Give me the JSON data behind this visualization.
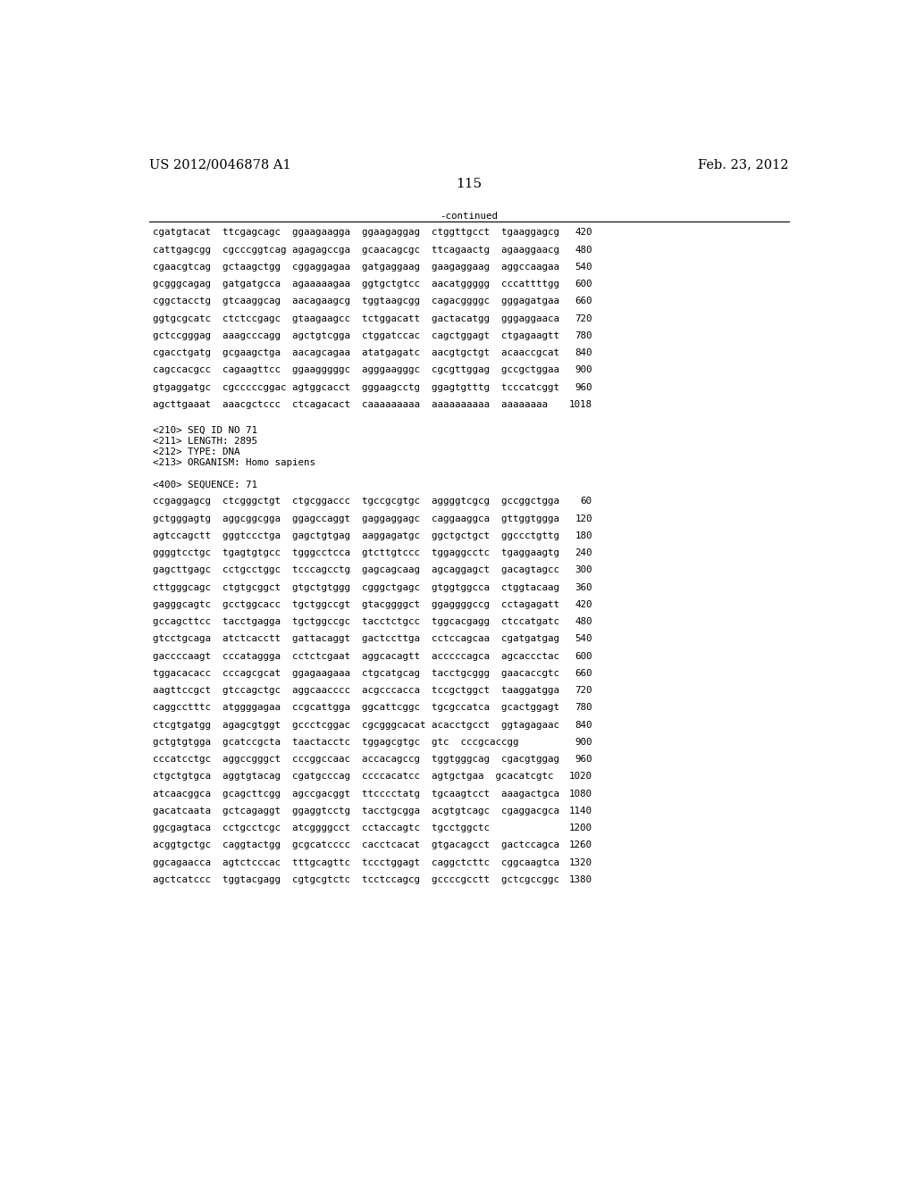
{
  "header_left": "US 2012/0046878 A1",
  "header_right": "Feb. 23, 2012",
  "page_number": "115",
  "continued_label": "-continued",
  "background_color": "#ffffff",
  "text_color": "#000000",
  "font_size_header": 10.5,
  "font_size_body": 7.8,
  "font_size_page": 11,
  "sequence_lines_top": [
    [
      "cgatgtacat  ttcgagcagc  ggaagaagga  ggaagaggag  ctggttgcct  tgaaggagcg",
      "420"
    ],
    [
      "cattgagcgg  cgcccggtcag agagagccga  gcaacagcgc  ttcagaactg  agaaggaacg",
      "480"
    ],
    [
      "cgaacgtcag  gctaagctgg  cggaggagaa  gatgaggaag  gaagaggaag  aggccaagaa",
      "540"
    ],
    [
      "gcgggcagag  gatgatgcca  agaaaaagaa  ggtgctgtcc  aacatggggg  cccattttgg",
      "600"
    ],
    [
      "cggctacctg  gtcaaggcag  aacagaagcg  tggtaagcgg  cagacggggc  gggagatgaa",
      "660"
    ],
    [
      "ggtgcgcatc  ctctccgagc  gtaagaagcc  tctggacatt  gactacatgg  gggaggaaca",
      "720"
    ],
    [
      "gctccgggag  aaagcccagg  agctgtcgga  ctggatccac  cagctggagt  ctgagaagtt",
      "780"
    ],
    [
      "cgacctgatg  gcgaagctga  aacagcagaa  atatgagatc  aacgtgctgt  acaaccgcat",
      "840"
    ],
    [
      "cagccacgcc  cagaagttcc  ggaagggggc  agggaagggc  cgcgttggag  gccgctggaa",
      "900"
    ],
    [
      "gtgaggatgc  cgcccccggac agtggcacct  gggaagcctg  ggagtgtttg  tcccatcggt",
      "960"
    ],
    [
      "agcttgaaat  aaacgctccc  ctcagacact  caaaaaaaaa  aaaaaaaaaa  aaaaaaaa",
      "1018"
    ]
  ],
  "metadata_lines": [
    "<210> SEQ ID NO 71",
    "<211> LENGTH: 2895",
    "<212> TYPE: DNA",
    "<213> ORGANISM: Homo sapiens",
    "",
    "<400> SEQUENCE: 71"
  ],
  "sequence_lines_bottom": [
    [
      "ccgaggagcg  ctcgggctgt  ctgcggaccc  tgccgcgtgc  aggggtcgcg  gccggctgga",
      "60"
    ],
    [
      "gctgggagtg  aggcggcgga  ggagccaggt  gaggaggagc  caggaaggca  gttggtggga",
      "120"
    ],
    [
      "agtccagctt  gggtccctga  gagctgtgag  aaggagatgc  ggctgctgct  ggccctgttg",
      "180"
    ],
    [
      "ggggtcctgc  tgagtgtgcc  tgggcctcca  gtcttgtccc  tggaggcctc  tgaggaagtg",
      "240"
    ],
    [
      "gagcttgagc  cctgcctggc  tcccagcctg  gagcagcaag  agcaggagct  gacagtagcc",
      "300"
    ],
    [
      "cttgggcagc  ctgtgcggct  gtgctgtggg  cgggctgagc  gtggtggcca  ctggtacaag",
      "360"
    ],
    [
      "gagggcagtc  gcctggcacc  tgctggccgt  gtacggggct  ggaggggccg  cctagagatt",
      "420"
    ],
    [
      "gccagcttcc  tacctgagga  tgctggccgc  tacctctgcc  tggcacgagg  ctccatgatc",
      "480"
    ],
    [
      "gtcctgcaga  atctcacctt  gattacaggt  gactccttga  cctccagcaa  cgatgatgag",
      "540"
    ],
    [
      "gaccccaagt  cccataggga  cctctcgaat  aggcacagtt  acccccagca  agcaccctac",
      "600"
    ],
    [
      "tggacacacc  cccagcgcat  ggagaagaaa  ctgcatgcag  tacctgcggg  gaacaccgtc",
      "660"
    ],
    [
      "aagttccgct  gtccagctgc  aggcaacccc  acgcccacca  tccgctggct  taaggatgga",
      "720"
    ],
    [
      "caggcctttc  atggggagaa  ccgcattgga  ggcattcggc  tgcgccatca  gcactggagt",
      "780"
    ],
    [
      "ctcgtgatgg  agagcgtggt  gccctcggac  cgcgggcacat acacctgcct  ggtagagaac",
      "840"
    ],
    [
      "gctgtgtgga  gcatccgcta  taactacctc  tggagcgtgc  gtc  cccgcaccgg",
      "900"
    ],
    [
      "cccatcctgc  aggccgggct  cccggccaac  accacagccg  tggtgggcag  cgacgtggag",
      "960"
    ],
    [
      "ctgctgtgca  aggtgtacag  cgatgcccag  ccccacatcc  agtgctgaa  gcacatcgtc",
      "1020"
    ],
    [
      "atcaacggca  gcagcttcgg  agccgacggt  ttcccctatg  tgcaagtcct  aaagactgca",
      "1080"
    ],
    [
      "gacatcaata  gctcagaggt  ggaggtcctg  tacctgcgga  acgtgtcagc  cgaggacgca",
      "1140"
    ],
    [
      "ggcgagtaca  cctgcctcgc  atcggggcct  cctaccagtc  tgcctggctc",
      "1200"
    ],
    [
      "acggtgctgc  caggtactgg  gcgcatcccc  cacctcacat  gtgacagcct  gactccagca",
      "1260"
    ],
    [
      "ggcagaacca  agtctcccac  tttgcagttc  tccctggagt  caggctcttc  cggcaagtca",
      "1320"
    ],
    [
      "agctcatccc  tggtacgagg  cgtgcgtctc  tcctccagcg  gccccgcctt  gctcgccggc",
      "1380"
    ]
  ]
}
